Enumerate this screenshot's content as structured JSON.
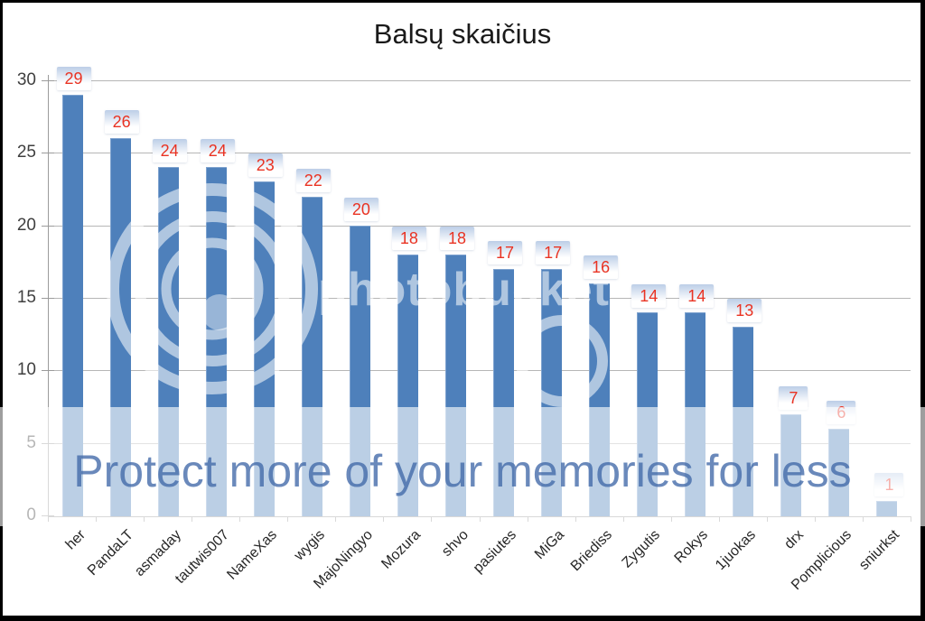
{
  "chart_data": {
    "type": "bar",
    "title": "Balsų skaičius",
    "categories": [
      "her",
      "PandaLT",
      "asmaday",
      "tautwis007",
      "NameXas",
      "wygis",
      "MajoNingyo",
      "Mozura",
      "shvo",
      "pasiutes",
      "MiGa",
      "Briediss",
      "Zygutis",
      "Rokys",
      "1juokas",
      "drx",
      "Pomplicious",
      "sniurkst"
    ],
    "values": [
      29,
      26,
      24,
      24,
      23,
      22,
      20,
      18,
      18,
      17,
      17,
      16,
      14,
      14,
      13,
      7,
      6,
      1
    ],
    "ylim": [
      0,
      30
    ],
    "yticks": [
      0,
      5,
      10,
      15,
      20,
      25,
      30
    ],
    "grid": true,
    "legend_position": "none",
    "data_labels": true,
    "xlabel": "",
    "ylabel": ""
  },
  "colors": {
    "bar": "#4e80bb",
    "bar_edge": "#7fa3cf",
    "grid": "#b6b6b6",
    "axis": "#9b9b9b",
    "tick_text": "#3f3f3f",
    "value_label_text": "#e93323",
    "value_label_box_top": "#bccee7",
    "value_label_box_bottom": "#ffffff",
    "title_text": "#1a1a1a"
  },
  "watermark": {
    "wordmark": "photobucket",
    "banner_text": "Protect more of your memories for less"
  }
}
